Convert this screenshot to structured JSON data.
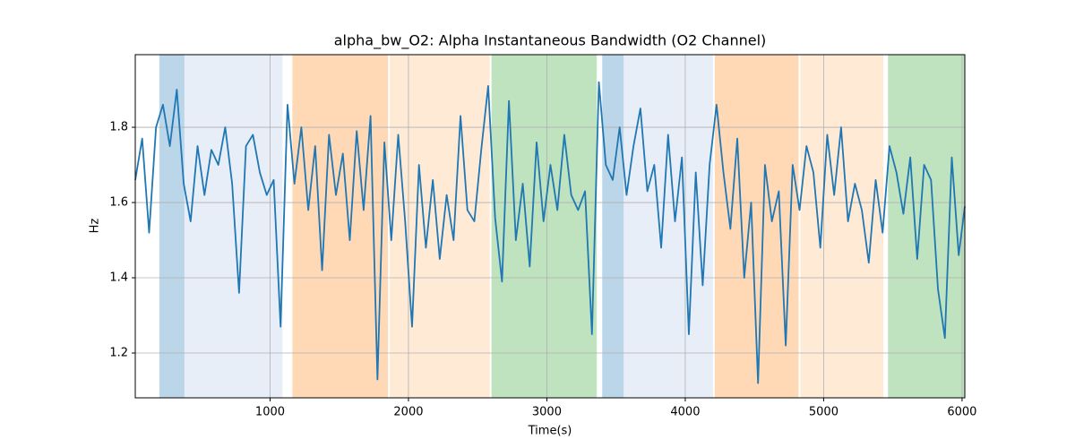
{
  "chart_data": {
    "type": "line",
    "title": "alpha_bw_O2: Alpha Instantaneous Bandwidth (O2 Channel)",
    "x_label": "Time(s)",
    "y_label": "Hz",
    "xlim": [
      26,
      6020
    ],
    "ylim": [
      1.081,
      1.993
    ],
    "xticks": [
      1000,
      2000,
      3000,
      4000,
      5000,
      6000
    ],
    "yticks": [
      1.2,
      1.4,
      1.6,
      1.8
    ],
    "grid": true,
    "spans": [
      {
        "start": 200,
        "end": 381,
        "color": "#1f77b4"
      },
      {
        "start": 381,
        "end": 1090,
        "color": "#aec7e8"
      },
      {
        "start": 1161,
        "end": 1852,
        "color": "#ff7f0e"
      },
      {
        "start": 1865,
        "end": 2587,
        "color": "#ffbb78"
      },
      {
        "start": 2600,
        "end": 3361,
        "color": "#2ca02c"
      },
      {
        "start": 3400,
        "end": 3555,
        "color": "#1f77b4"
      },
      {
        "start": 3555,
        "end": 4200,
        "color": "#aec7e8"
      },
      {
        "start": 4213,
        "end": 4819,
        "color": "#ff7f0e"
      },
      {
        "start": 4832,
        "end": 5432,
        "color": "#ffbb78"
      },
      {
        "start": 5465,
        "end": 6020,
        "color": "#2ca02c"
      }
    ],
    "series": [
      {
        "color": "#1f77b4",
        "x": [
          26,
          76,
          126,
          176,
          226,
          276,
          326,
          376,
          426,
          476,
          526,
          576,
          626,
          676,
          726,
          776,
          826,
          876,
          926,
          976,
          1026,
          1076,
          1126,
          1176,
          1226,
          1276,
          1326,
          1376,
          1426,
          1476,
          1526,
          1576,
          1626,
          1676,
          1726,
          1776,
          1826,
          1876,
          1926,
          1976,
          2026,
          2076,
          2126,
          2176,
          2226,
          2276,
          2326,
          2376,
          2426,
          2476,
          2526,
          2576,
          2626,
          2676,
          2726,
          2776,
          2826,
          2876,
          2926,
          2976,
          3026,
          3076,
          3126,
          3176,
          3226,
          3276,
          3326,
          3376,
          3426,
          3476,
          3526,
          3576,
          3626,
          3676,
          3726,
          3776,
          3826,
          3876,
          3926,
          3976,
          4026,
          4076,
          4126,
          4176,
          4226,
          4276,
          4326,
          4376,
          4426,
          4476,
          4526,
          4576,
          4626,
          4676,
          4726,
          4776,
          4826,
          4876,
          4926,
          4976,
          5026,
          5076,
          5126,
          5176,
          5226,
          5276,
          5326,
          5376,
          5426,
          5476,
          5526,
          5576,
          5626,
          5676,
          5726,
          5776,
          5826,
          5876,
          5926,
          5976,
          6020
        ],
        "values": [
          1.66,
          1.77,
          1.52,
          1.8,
          1.86,
          1.75,
          1.9,
          1.65,
          1.55,
          1.75,
          1.62,
          1.74,
          1.7,
          1.8,
          1.65,
          1.36,
          1.75,
          1.78,
          1.68,
          1.62,
          1.66,
          1.27,
          1.86,
          1.65,
          1.8,
          1.58,
          1.75,
          1.42,
          1.78,
          1.62,
          1.73,
          1.5,
          1.79,
          1.58,
          1.83,
          1.13,
          1.76,
          1.5,
          1.78,
          1.55,
          1.27,
          1.7,
          1.48,
          1.66,
          1.45,
          1.62,
          1.5,
          1.83,
          1.58,
          1.55,
          1.74,
          1.91,
          1.56,
          1.39,
          1.87,
          1.5,
          1.65,
          1.43,
          1.76,
          1.55,
          1.7,
          1.58,
          1.78,
          1.62,
          1.58,
          1.63,
          1.25,
          1.92,
          1.7,
          1.66,
          1.8,
          1.62,
          1.75,
          1.85,
          1.63,
          1.7,
          1.48,
          1.78,
          1.55,
          1.72,
          1.25,
          1.68,
          1.38,
          1.7,
          1.86,
          1.68,
          1.53,
          1.77,
          1.4,
          1.6,
          1.12,
          1.7,
          1.55,
          1.63,
          1.22,
          1.7,
          1.58,
          1.75,
          1.68,
          1.48,
          1.78,
          1.62,
          1.8,
          1.55,
          1.65,
          1.58,
          1.44,
          1.66,
          1.52,
          1.75,
          1.68,
          1.57,
          1.72,
          1.45,
          1.7,
          1.66,
          1.37,
          1.24,
          1.72,
          1.46,
          1.59
        ]
      }
    ]
  }
}
